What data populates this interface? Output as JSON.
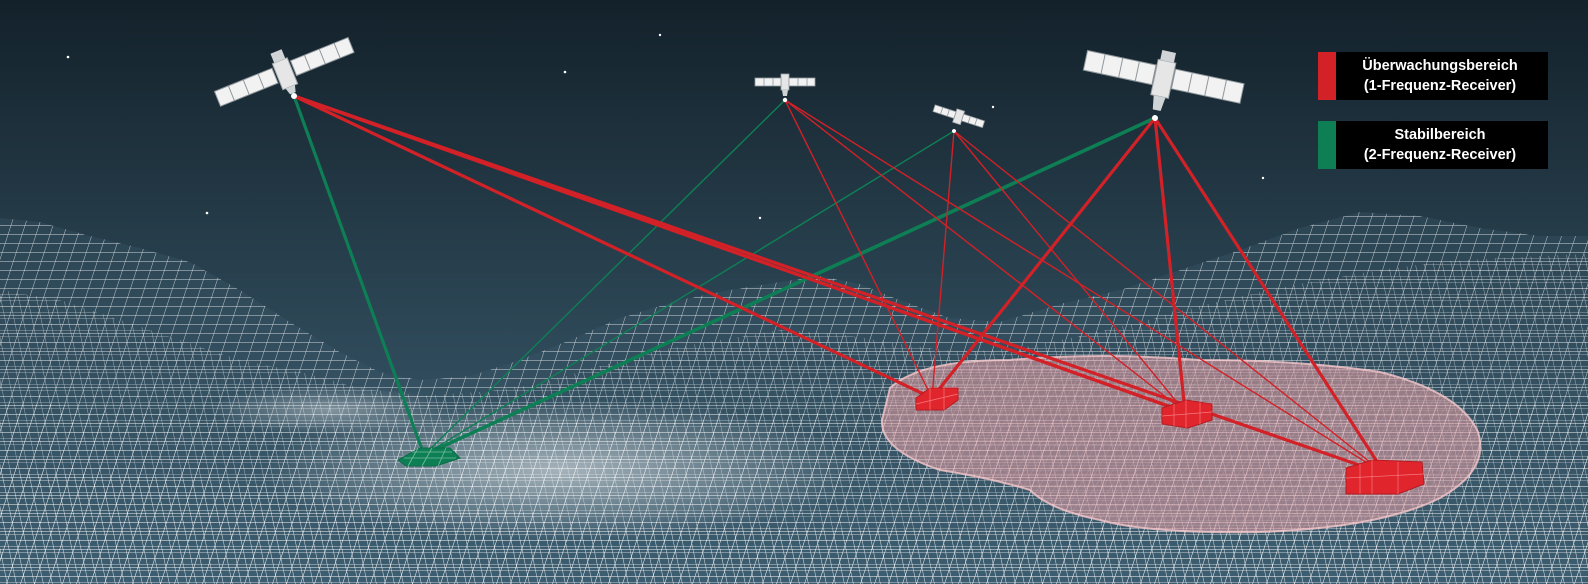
{
  "colors": {
    "monitoring_red": "#d22127",
    "stable_green": "#0e7f55",
    "sky_top": "#13212a",
    "sky_bottom": "#3a5d71",
    "mesh": "#ffffff"
  },
  "legend": {
    "items": [
      {
        "line1": "Überwachungsbereich",
        "line2": "(1-Frequenz-Receiver)",
        "color": "#d22127"
      },
      {
        "line1": "Stabilbereich",
        "line2": "(2-Frequenz-Receiver)",
        "color": "#0e7f55"
      }
    ]
  },
  "icons": {
    "satellite": "satellite-icon",
    "receiver_patch": "receiver-grid-patch"
  }
}
